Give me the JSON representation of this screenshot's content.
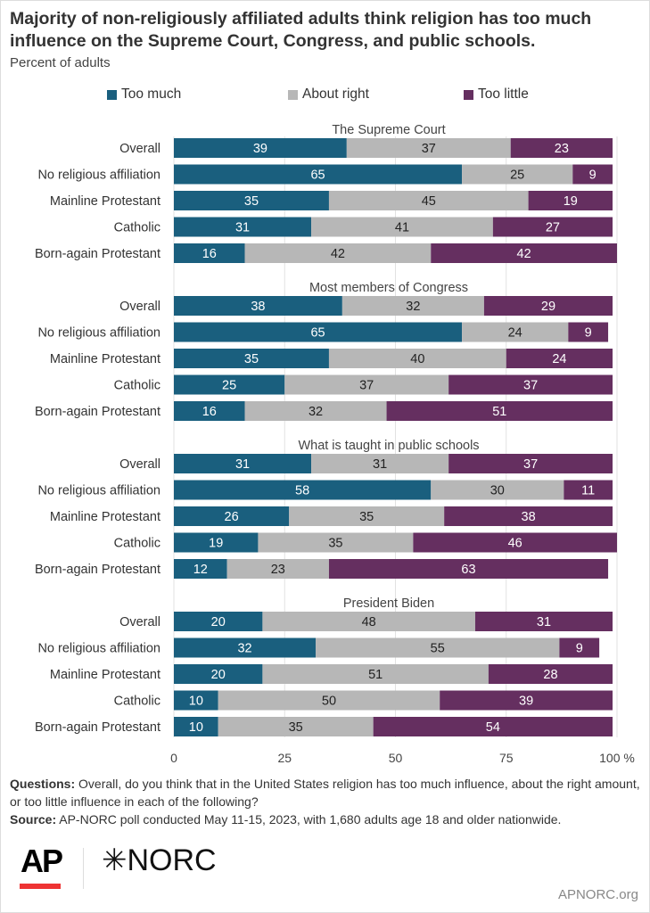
{
  "chart_data": {
    "type": "bar",
    "orientation": "horizontal-stacked",
    "title": "Majority of non-religiously affiliated adults think religion has too much influence on the Supreme Court, Congress, and public schools.",
    "subtitle": "Percent of adults",
    "legend": [
      "Too much",
      "About right",
      "Too little"
    ],
    "legend_placement": "top",
    "colors": [
      "#1a5f7e",
      "#b7b7b7",
      "#652f60"
    ],
    "xlim": [
      0,
      100
    ],
    "xticks": [
      "0",
      "25",
      "50",
      "75",
      "100"
    ],
    "x_unit": "%",
    "panels": [
      {
        "title": "The Supreme Court",
        "categories": [
          "Overall",
          "No religious affiliation",
          "Mainline Protestant",
          "Catholic",
          "Born-again Protestant"
        ],
        "series": [
          {
            "name": "Too much",
            "values": [
              39,
              65,
              35,
              31,
              16
            ]
          },
          {
            "name": "About right",
            "values": [
              37,
              25,
              45,
              41,
              42
            ]
          },
          {
            "name": "Too little",
            "values": [
              23,
              9,
              19,
              27,
              42
            ]
          }
        ]
      },
      {
        "title": "Most members of Congress",
        "categories": [
          "Overall",
          "No religious affiliation",
          "Mainline Protestant",
          "Catholic",
          "Born-again Protestant"
        ],
        "series": [
          {
            "name": "Too much",
            "values": [
              38,
              65,
              35,
              25,
              16
            ]
          },
          {
            "name": "About right",
            "values": [
              32,
              24,
              40,
              37,
              32
            ]
          },
          {
            "name": "Too little",
            "values": [
              29,
              9,
              24,
              37,
              51
            ]
          }
        ]
      },
      {
        "title": "What is taught in public schools",
        "categories": [
          "Overall",
          "No religious affiliation",
          "Mainline Protestant",
          "Catholic",
          "Born-again Protestant"
        ],
        "series": [
          {
            "name": "Too much",
            "values": [
              31,
              58,
              26,
              19,
              12
            ]
          },
          {
            "name": "About right",
            "values": [
              31,
              30,
              35,
              35,
              23
            ]
          },
          {
            "name": "Too little",
            "values": [
              37,
              11,
              38,
              46,
              63
            ]
          }
        ]
      },
      {
        "title": "President Biden",
        "categories": [
          "Overall",
          "No religious affiliation",
          "Mainline Protestant",
          "Catholic",
          "Born-again Protestant"
        ],
        "series": [
          {
            "name": "Too much",
            "values": [
              20,
              32,
              20,
              10,
              10
            ]
          },
          {
            "name": "About right",
            "values": [
              48,
              55,
              51,
              50,
              35
            ]
          },
          {
            "name": "Too little",
            "values": [
              31,
              9,
              28,
              39,
              54
            ]
          }
        ]
      }
    ]
  },
  "footer": {
    "questions_label": "Questions:",
    "questions_text": " Overall, do you think that in the United States religion has too much influence, about the right amount, or too little influence in each of the following?",
    "source_label": "Source:",
    "source_text": " AP-NORC poll conducted May 11-15, 2023, with 1,680 adults age 18 and older nationwide.",
    "logo_ap": "AP",
    "logo_norc": "✳NORC",
    "url": "APNORC.org"
  }
}
